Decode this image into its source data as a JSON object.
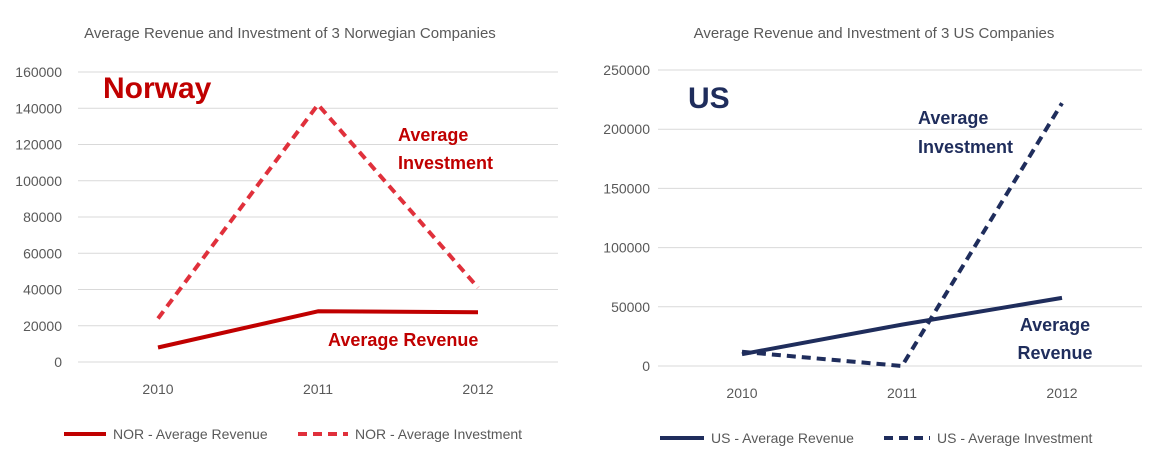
{
  "chart_data": [
    {
      "type": "line",
      "title": "Average Revenue and Investment of 3 Norwegian Companies",
      "label": "Norway",
      "categories": [
        "2010",
        "2011",
        "2012"
      ],
      "ylim": [
        0,
        160000
      ],
      "yticks": [
        "0",
        "20000",
        "40000",
        "60000",
        "80000",
        "100000",
        "120000",
        "140000",
        "160000"
      ],
      "grid": true,
      "legend_position": "bottom",
      "series": [
        {
          "name": "NOR - Average Revenue",
          "values": [
            8000,
            28000,
            27500
          ],
          "color": "#c00000",
          "dash": "solid"
        },
        {
          "name": "NOR - Average Investment",
          "values": [
            24000,
            142000,
            41000
          ],
          "color": "#e0303b",
          "dash": "dashed"
        }
      ],
      "annotations": {
        "investment": [
          "Average",
          "Investment"
        ],
        "revenue": [
          "Average Revenue"
        ]
      }
    },
    {
      "type": "line",
      "title": "Average Revenue and Investment of 3 US Companies",
      "label": "US",
      "categories": [
        "2010",
        "2011",
        "2012"
      ],
      "ylim": [
        0,
        250000
      ],
      "yticks": [
        "0",
        "50000",
        "100000",
        "150000",
        "200000",
        "250000"
      ],
      "grid": true,
      "legend_position": "bottom",
      "series": [
        {
          "name": "US - Average Revenue",
          "values": [
            10000,
            35000,
            57500
          ],
          "color": "#1f2d5c",
          "dash": "solid"
        },
        {
          "name": "US - Average Investment",
          "values": [
            12000,
            0,
            222000
          ],
          "color": "#1f2d5c",
          "dash": "dashed"
        }
      ],
      "annotations": {
        "investment": [
          "Average",
          "Investment"
        ],
        "revenue": [
          "Average",
          "Revenue"
        ]
      }
    }
  ],
  "colors": {
    "norway_label": "#c00000",
    "us_label": "#1f2d5c"
  }
}
